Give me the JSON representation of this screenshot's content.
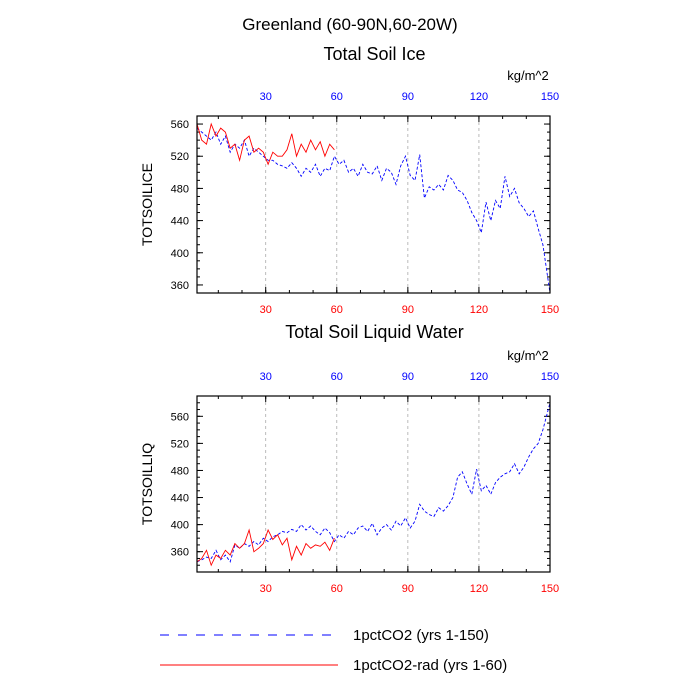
{
  "figure": {
    "title": "Greenland (60-90N,60-20W)"
  },
  "legend": {
    "items": [
      {
        "label": "1pctCO2 (yrs 1-150)",
        "color": "#0000ff",
        "dash": "dashed"
      },
      {
        "label": "1pctCO2-rad (yrs 1-60)",
        "color": "#ff0000",
        "dash": "solid"
      }
    ]
  },
  "chart_data": [
    {
      "type": "line",
      "title": "Total Soil Ice",
      "ylabel": "TOTSOILICE",
      "top_axis_unit": "kg/m^2",
      "xlim": [
        1,
        150
      ],
      "ylim": [
        350,
        570
      ],
      "xticks": [
        30,
        60,
        90,
        120,
        150
      ],
      "yticks": [
        360,
        400,
        440,
        480,
        520,
        560
      ],
      "bottom_tick_color": "#ff0000",
      "top_tick_color": "#0000ff",
      "grid": "vertical dashed at x ticks",
      "series": [
        {
          "name": "1pctCO2 (yrs 1-150)",
          "color": "#0000ff",
          "style": "dashed",
          "x": [
            1,
            3,
            5,
            7,
            9,
            11,
            13,
            15,
            17,
            19,
            21,
            23,
            25,
            27,
            29,
            31,
            33,
            35,
            37,
            39,
            41,
            43,
            45,
            47,
            49,
            51,
            53,
            55,
            57,
            59,
            61,
            63,
            65,
            67,
            69,
            71,
            73,
            75,
            77,
            79,
            81,
            83,
            85,
            87,
            89,
            91,
            93,
            95,
            97,
            99,
            101,
            103,
            105,
            107,
            109,
            111,
            113,
            115,
            117,
            119,
            121,
            123,
            125,
            127,
            129,
            131,
            133,
            135,
            137,
            139,
            141,
            143,
            145,
            147,
            150
          ],
          "y": [
            555,
            550,
            545,
            540,
            550,
            535,
            545,
            525,
            535,
            530,
            540,
            520,
            530,
            525,
            520,
            515,
            515,
            510,
            508,
            505,
            512,
            505,
            495,
            505,
            500,
            510,
            495,
            505,
            502,
            520,
            510,
            515,
            500,
            505,
            495,
            510,
            500,
            498,
            508,
            490,
            505,
            500,
            485,
            508,
            520,
            496,
            490,
            522,
            468,
            482,
            478,
            485,
            478,
            496,
            490,
            478,
            475,
            465,
            450,
            440,
            425,
            463,
            440,
            465,
            455,
            495,
            470,
            480,
            462,
            455,
            445,
            452,
            430,
            410,
            350
          ]
        },
        {
          "name": "1pctCO2-rad (yrs 1-60)",
          "color": "#ff0000",
          "style": "solid",
          "x": [
            1,
            3,
            5,
            7,
            9,
            11,
            13,
            15,
            17,
            19,
            21,
            23,
            25,
            27,
            29,
            31,
            33,
            35,
            37,
            39,
            41,
            43,
            45,
            47,
            49,
            51,
            53,
            55,
            57,
            59
          ],
          "y": [
            560,
            540,
            535,
            560,
            545,
            555,
            550,
            530,
            535,
            515,
            540,
            545,
            525,
            530,
            525,
            510,
            525,
            520,
            520,
            528,
            548,
            520,
            535,
            525,
            540,
            528,
            538,
            520,
            535,
            528
          ]
        }
      ]
    },
    {
      "type": "line",
      "title": "Total Soil Liquid Water",
      "ylabel": "TOTSOILLIQ",
      "top_axis_unit": "kg/m^2",
      "xlim": [
        1,
        150
      ],
      "ylim": [
        330,
        590
      ],
      "xticks": [
        30,
        60,
        90,
        120,
        150
      ],
      "yticks": [
        360,
        400,
        440,
        480,
        520,
        560
      ],
      "bottom_tick_color": "#ff0000",
      "top_tick_color": "#0000ff",
      "grid": "vertical dashed at x ticks",
      "series": [
        {
          "name": "1pctCO2 (yrs 1-150)",
          "color": "#0000ff",
          "style": "dashed",
          "x": [
            1,
            3,
            5,
            7,
            9,
            11,
            13,
            15,
            17,
            19,
            21,
            23,
            25,
            27,
            29,
            31,
            33,
            35,
            37,
            39,
            41,
            43,
            45,
            47,
            49,
            51,
            53,
            55,
            57,
            59,
            61,
            63,
            65,
            67,
            69,
            71,
            73,
            75,
            77,
            79,
            81,
            83,
            85,
            87,
            89,
            91,
            93,
            95,
            97,
            99,
            101,
            103,
            105,
            107,
            109,
            111,
            113,
            115,
            117,
            119,
            121,
            123,
            125,
            127,
            129,
            131,
            133,
            135,
            137,
            139,
            141,
            143,
            145,
            147,
            150
          ],
          "y": [
            345,
            348,
            352,
            350,
            362,
            348,
            355,
            345,
            370,
            365,
            372,
            368,
            375,
            370,
            380,
            375,
            382,
            385,
            390,
            388,
            393,
            390,
            400,
            392,
            398,
            390,
            385,
            395,
            388,
            375,
            385,
            380,
            390,
            385,
            395,
            398,
            390,
            402,
            385,
            395,
            400,
            392,
            405,
            398,
            410,
            395,
            405,
            430,
            420,
            415,
            412,
            425,
            420,
            428,
            440,
            470,
            478,
            460,
            445,
            482,
            450,
            458,
            445,
            462,
            470,
            475,
            478,
            490,
            475,
            485,
            500,
            512,
            520,
            540,
            580
          ]
        },
        {
          "name": "1pctCO2-rad (yrs 1-60)",
          "color": "#ff0000",
          "style": "solid",
          "x": [
            1,
            3,
            5,
            7,
            9,
            11,
            13,
            15,
            17,
            19,
            21,
            23,
            25,
            27,
            29,
            31,
            33,
            35,
            37,
            39,
            41,
            43,
            45,
            47,
            49,
            51,
            53,
            55,
            57,
            59
          ],
          "y": [
            345,
            350,
            362,
            340,
            355,
            350,
            362,
            355,
            372,
            365,
            372,
            392,
            360,
            365,
            372,
            392,
            378,
            385,
            370,
            380,
            348,
            368,
            355,
            372,
            365,
            370,
            368,
            374,
            362,
            380
          ]
        }
      ]
    }
  ]
}
